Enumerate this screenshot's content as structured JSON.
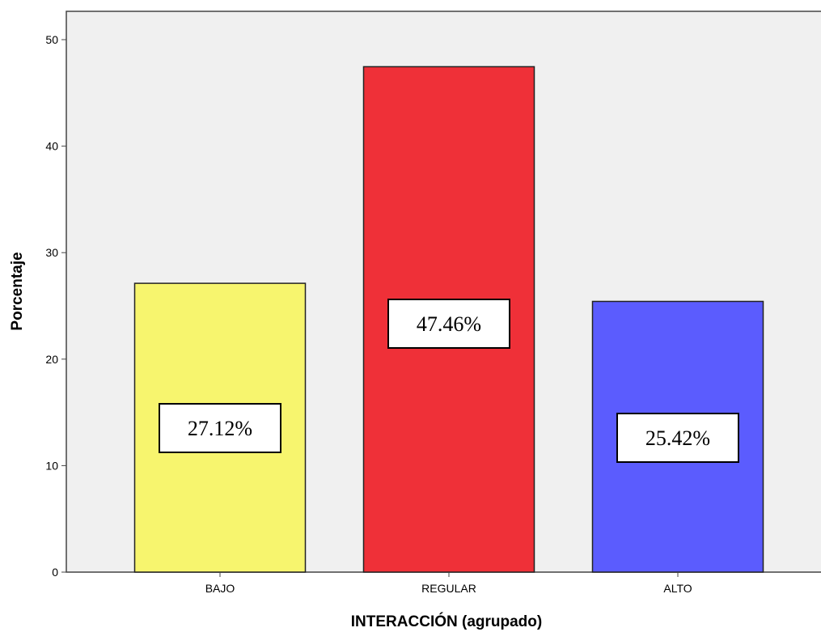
{
  "chart_data": {
    "type": "bar",
    "title": "",
    "xlabel": "INTERACCIÓN (agrupado)",
    "ylabel": "Porcentaje",
    "categories": [
      "BAJO",
      "REGULAR",
      "ALTO"
    ],
    "values": [
      27.12,
      47.46,
      25.42
    ],
    "data_labels": [
      "27.12%",
      "47.46%",
      "25.42%"
    ],
    "bar_colors": [
      "#f7f56e",
      "#ef3038",
      "#5b5cfe"
    ],
    "ylim": [
      0,
      50
    ],
    "yticks": [
      "0",
      "10",
      "20",
      "30",
      "40",
      "50"
    ],
    "grid": false,
    "plot_background": "#f0f0f0",
    "legend": "none"
  }
}
